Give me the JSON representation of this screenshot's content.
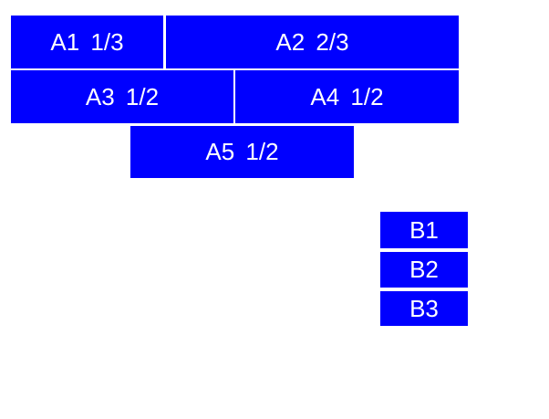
{
  "palette": {
    "block_fill": "#0000ff",
    "block_text": "#ffffff",
    "background": "#ffffff"
  },
  "blocks": [
    {
      "id": "A1",
      "label": "A1 1/3",
      "fraction": "1/3",
      "row": 1
    },
    {
      "id": "A2",
      "label": "A2 2/3",
      "fraction": "2/3",
      "row": 1
    },
    {
      "id": "A3",
      "label": "A3 1/2",
      "fraction": "1/2",
      "row": 2
    },
    {
      "id": "A4",
      "label": "A4 1/2",
      "fraction": "1/2",
      "row": 2
    },
    {
      "id": "A5",
      "label": "A5 1/2",
      "fraction": "1/2",
      "row": 3
    },
    {
      "id": "B1",
      "label": "B1",
      "row": 4
    },
    {
      "id": "B2",
      "label": "B2",
      "row": 5
    },
    {
      "id": "B3",
      "label": "B3",
      "row": 6
    }
  ]
}
